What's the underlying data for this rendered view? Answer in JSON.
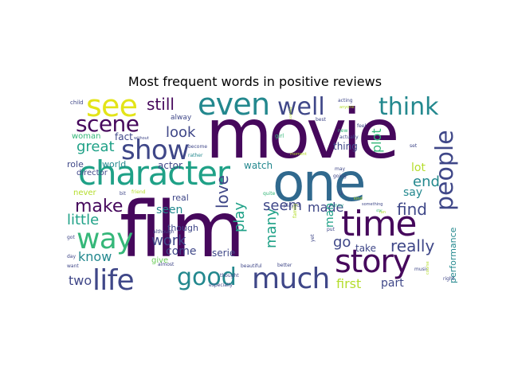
{
  "title": "Most frequent words in positive reviews",
  "colors": {
    "dark_purple": "#46085c",
    "indigo": "#3f4788",
    "blue": "#30698e",
    "teal": "#23888e",
    "teal_green": "#1fa187",
    "green": "#35b779",
    "light_green": "#6cce59",
    "lime": "#b4dd2b",
    "yellow": "#e3e418"
  },
  "words": [
    {
      "text": "movie",
      "color": "dark_purple"
    },
    {
      "text": "film",
      "color": "dark_purple"
    },
    {
      "text": "one",
      "color": "blue"
    },
    {
      "text": "character",
      "color": "teal_green"
    },
    {
      "text": "time",
      "color": "dark_purple"
    },
    {
      "text": "story",
      "color": "dark_purple"
    },
    {
      "text": "even",
      "color": "teal"
    },
    {
      "text": "see",
      "color": "yellow"
    },
    {
      "text": "show",
      "color": "indigo"
    },
    {
      "text": "scene",
      "color": "dark_purple"
    },
    {
      "text": "much",
      "color": "indigo"
    },
    {
      "text": "way",
      "color": "green"
    },
    {
      "text": "life",
      "color": "indigo"
    },
    {
      "text": "well",
      "color": "indigo"
    },
    {
      "text": "think",
      "color": "teal"
    },
    {
      "text": "good",
      "color": "teal"
    },
    {
      "text": "people",
      "color": "indigo"
    },
    {
      "text": "make",
      "color": "dark_purple"
    },
    {
      "text": "love",
      "color": "indigo"
    },
    {
      "text": "still",
      "color": "dark_purple"
    },
    {
      "text": "great",
      "color": "teal_green"
    },
    {
      "text": "look",
      "color": "indigo"
    },
    {
      "text": "plot",
      "color": "green"
    },
    {
      "text": "end",
      "color": "teal"
    },
    {
      "text": "find",
      "color": "indigo"
    },
    {
      "text": "really",
      "color": "indigo"
    },
    {
      "text": "little",
      "color": "teal_green"
    },
    {
      "text": "know",
      "color": "teal"
    },
    {
      "text": "work",
      "color": "indigo"
    },
    {
      "text": "play",
      "color": "teal_green"
    },
    {
      "text": "many",
      "color": "teal_green"
    },
    {
      "text": "seem",
      "color": "indigo"
    },
    {
      "text": "made",
      "color": "indigo"
    },
    {
      "text": "go",
      "color": "indigo"
    },
    {
      "text": "first",
      "color": "lime"
    },
    {
      "text": "two",
      "color": "indigo"
    },
    {
      "text": "part",
      "color": "indigo"
    },
    {
      "text": "lot",
      "color": "lime"
    },
    {
      "text": "say",
      "color": "teal"
    },
    {
      "text": "man",
      "color": "teal_green"
    },
    {
      "text": "seen",
      "color": "teal"
    },
    {
      "text": "come",
      "color": "indigo"
    },
    {
      "text": "take",
      "color": "indigo"
    },
    {
      "text": "serie",
      "color": "indigo"
    },
    {
      "text": "fact",
      "color": "indigo"
    },
    {
      "text": "world",
      "color": "teal"
    },
    {
      "text": "actor",
      "color": "indigo"
    },
    {
      "text": "watch",
      "color": "teal"
    },
    {
      "text": "thing",
      "color": "indigo"
    },
    {
      "text": "role",
      "color": "indigo"
    },
    {
      "text": "real",
      "color": "indigo"
    },
    {
      "text": "though",
      "color": "indigo"
    },
    {
      "text": "give",
      "color": "light_green"
    },
    {
      "text": "never",
      "color": "lime"
    },
    {
      "text": "director",
      "color": "indigo"
    },
    {
      "text": "woman",
      "color": "green"
    },
    {
      "text": "alway",
      "color": "indigo"
    },
    {
      "text": "performance",
      "color": "teal"
    },
    {
      "text": "u",
      "color": "indigo"
    },
    {
      "text": "child",
      "color": "indigo"
    },
    {
      "text": "acting",
      "color": "indigo"
    },
    {
      "text": "best",
      "color": "indigo"
    },
    {
      "text": "anyone",
      "color": "lime"
    },
    {
      "text": "new",
      "color": "green"
    },
    {
      "text": "feel",
      "color": "indigo"
    },
    {
      "text": "actually",
      "color": "indigo"
    },
    {
      "text": "set",
      "color": "indigo"
    },
    {
      "text": "girl",
      "color": "green"
    },
    {
      "text": "moment",
      "color": "lime"
    },
    {
      "text": "without",
      "color": "indigo"
    },
    {
      "text": "become",
      "color": "indigo"
    },
    {
      "text": "rather",
      "color": "teal"
    },
    {
      "text": "may",
      "color": "indigo"
    },
    {
      "text": "going",
      "color": "indigo"
    },
    {
      "text": "bit",
      "color": "indigo"
    },
    {
      "text": "friend",
      "color": "lime"
    },
    {
      "text": "quite",
      "color": "green"
    },
    {
      "text": "played",
      "color": "indigo"
    },
    {
      "text": "kind",
      "color": "lime"
    },
    {
      "text": "funny",
      "color": "teal_green"
    },
    {
      "text": "something",
      "color": "indigo"
    },
    {
      "text": "yet",
      "color": "indigo"
    },
    {
      "text": "fan",
      "color": "lime"
    },
    {
      "text": "put",
      "color": "indigo"
    },
    {
      "text": "got",
      "color": "indigo"
    },
    {
      "text": "although",
      "color": "indigo"
    },
    {
      "text": "day",
      "color": "indigo"
    },
    {
      "text": "want",
      "color": "indigo"
    },
    {
      "text": "almost",
      "color": "indigo"
    },
    {
      "text": "thought",
      "color": "indigo"
    },
    {
      "text": "beautiful",
      "color": "indigo"
    },
    {
      "text": "better",
      "color": "indigo"
    },
    {
      "text": "music",
      "color": "indigo"
    },
    {
      "text": "family",
      "color": "lime"
    },
    {
      "text": "course",
      "color": "lime"
    },
    {
      "text": "especially",
      "color": "indigo"
    },
    {
      "text": "look",
      "color": "indigo"
    },
    {
      "text": "star",
      "color": "green"
    },
    {
      "text": "right",
      "color": "indigo"
    },
    {
      "text": "comedy",
      "color": "lime"
    }
  ]
}
